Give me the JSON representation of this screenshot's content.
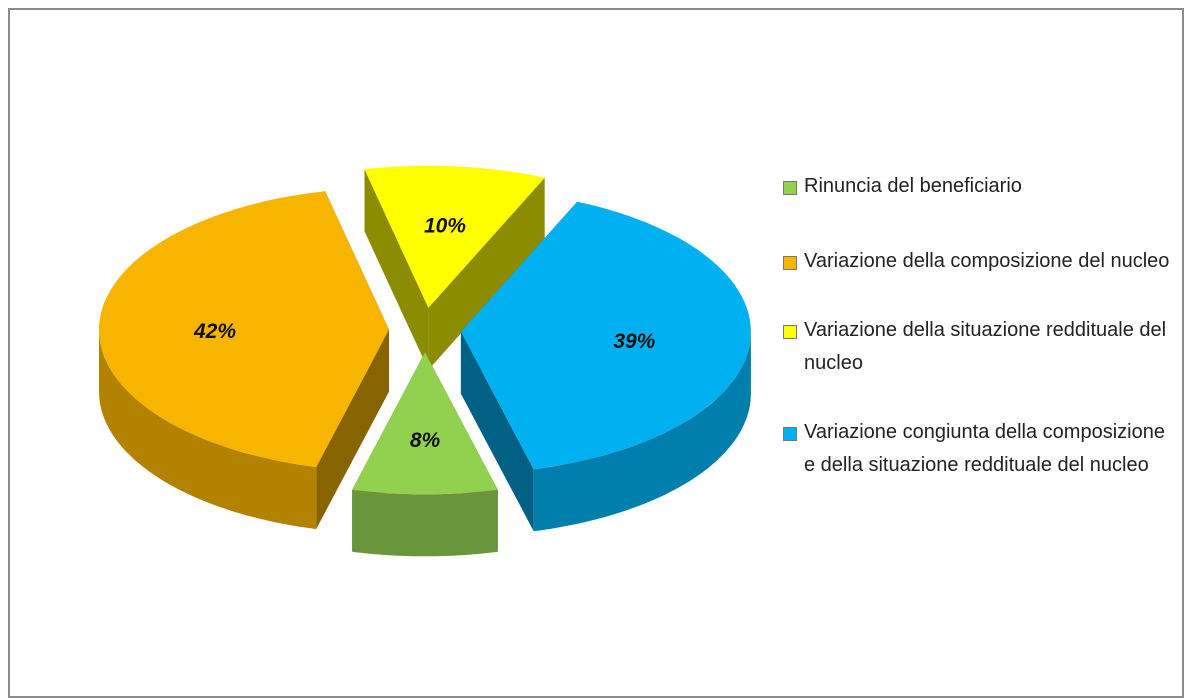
{
  "chart_data": {
    "type": "pie",
    "categories": [
      "Rinuncia del beneficiario",
      "Variazione della composizione del nucleo",
      "Variazione della situazione reddituale del nucleo",
      "Variazione congiunta della composizione e della situazione reddituale del nucleo"
    ],
    "values": [
      8,
      42,
      10,
      39
    ],
    "value_labels": [
      "8%",
      "42%",
      "10%",
      "39%"
    ],
    "colors": [
      "#92d050",
      "#f7b500",
      "#ffff00",
      "#00b0f0"
    ],
    "legend": "right"
  }
}
